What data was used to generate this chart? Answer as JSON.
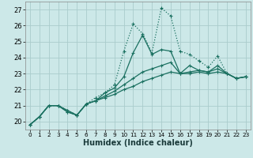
{
  "xlabel": "Humidex (Indice chaleur)",
  "xlim": [
    -0.5,
    23.5
  ],
  "ylim": [
    19.5,
    27.5
  ],
  "xticks": [
    0,
    1,
    2,
    3,
    4,
    5,
    6,
    7,
    8,
    9,
    10,
    11,
    12,
    13,
    14,
    15,
    16,
    17,
    18,
    19,
    20,
    21,
    22,
    23
  ],
  "yticks": [
    20,
    21,
    22,
    23,
    24,
    25,
    26,
    27
  ],
  "bg_color": "#cce8e8",
  "grid_color": "#aacccc",
  "line_color": "#1a7060",
  "lines": [
    [
      19.8,
      20.3,
      21.0,
      21.0,
      20.7,
      20.4,
      21.1,
      21.5,
      21.8,
      22.3,
      24.4,
      26.1,
      25.5,
      24.3,
      27.1,
      26.6,
      24.4,
      24.2,
      23.8,
      23.4,
      24.1,
      23.0,
      22.7,
      22.8
    ],
    [
      19.8,
      20.3,
      21.0,
      21.0,
      20.7,
      20.4,
      21.1,
      21.3,
      21.8,
      22.1,
      22.8,
      24.3,
      25.4,
      24.2,
      24.5,
      24.4,
      23.0,
      23.5,
      23.2,
      23.1,
      23.5,
      23.0,
      22.7,
      22.8
    ],
    [
      19.8,
      20.3,
      21.0,
      21.0,
      20.6,
      20.4,
      21.1,
      21.3,
      21.6,
      21.9,
      22.3,
      22.7,
      23.1,
      23.3,
      23.5,
      23.7,
      23.0,
      23.1,
      23.2,
      23.1,
      23.3,
      23.0,
      22.7,
      22.8
    ],
    [
      19.8,
      20.3,
      21.0,
      21.0,
      20.6,
      20.4,
      21.1,
      21.3,
      21.5,
      21.7,
      22.0,
      22.2,
      22.5,
      22.7,
      22.9,
      23.1,
      23.0,
      23.0,
      23.1,
      23.0,
      23.1,
      23.0,
      22.7,
      22.8
    ]
  ],
  "ytick_fontsize": 6,
  "xtick_fontsize": 5.2,
  "xlabel_fontsize": 7
}
